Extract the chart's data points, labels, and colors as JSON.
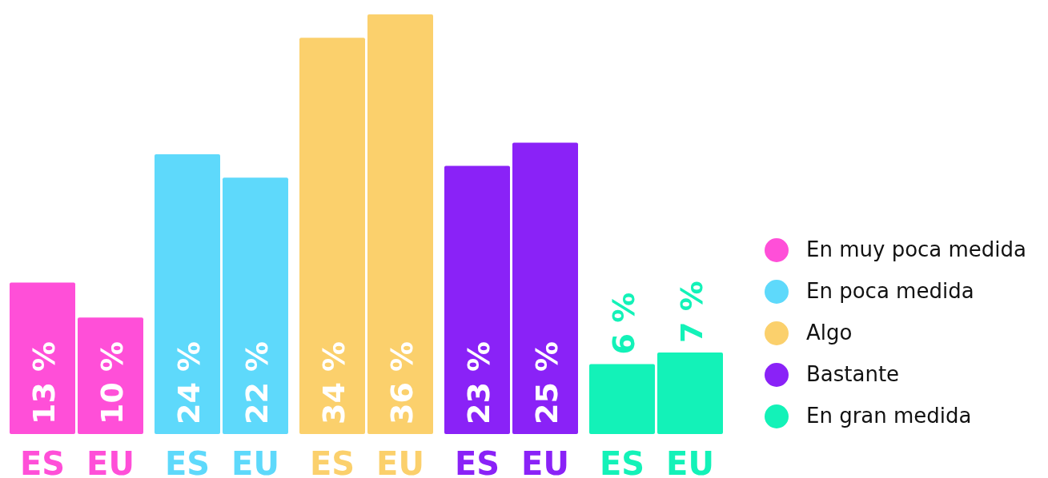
{
  "chart_data": {
    "type": "bar",
    "categories": [
      "ES",
      "EU",
      "ES",
      "EU",
      "ES",
      "EU",
      "ES",
      "EU",
      "ES",
      "EU"
    ],
    "legend": "right",
    "series": [
      {
        "name": "En muy poca medida",
        "color": "#ff4fd8",
        "values": [
          13,
          10,
          null,
          null,
          null,
          null,
          null,
          null,
          null,
          null
        ],
        "value_labels": [
          "13 %",
          "10 %",
          null,
          null,
          null,
          null,
          null,
          null,
          null,
          null
        ]
      },
      {
        "name": "En poca medida",
        "color": "#5ed9fb",
        "values": [
          null,
          null,
          24,
          22,
          null,
          null,
          null,
          null,
          null,
          null
        ],
        "value_labels": [
          null,
          null,
          "24 %",
          "22 %",
          null,
          null,
          null,
          null,
          null,
          null
        ]
      },
      {
        "name": "Algo",
        "color": "#fbd06c",
        "values": [
          null,
          null,
          null,
          null,
          34,
          36,
          null,
          null,
          null,
          null
        ],
        "value_labels": [
          null,
          null,
          null,
          null,
          "34 %",
          "36 %",
          null,
          null,
          null,
          null
        ]
      },
      {
        "name": "Bastante",
        "color": "#8a22f7",
        "values": [
          null,
          null,
          null,
          null,
          null,
          null,
          23,
          25,
          null,
          null
        ],
        "value_labels": [
          null,
          null,
          null,
          null,
          null,
          null,
          "23 %",
          "25 %",
          null,
          null
        ]
      },
      {
        "name": "En gran medida",
        "color": "#13f2b8",
        "values": [
          null,
          null,
          null,
          null,
          null,
          null,
          null,
          null,
          6,
          7
        ],
        "value_labels": [
          null,
          null,
          null,
          null,
          null,
          null,
          null,
          null,
          "6 %",
          "7 %"
        ]
      }
    ]
  }
}
